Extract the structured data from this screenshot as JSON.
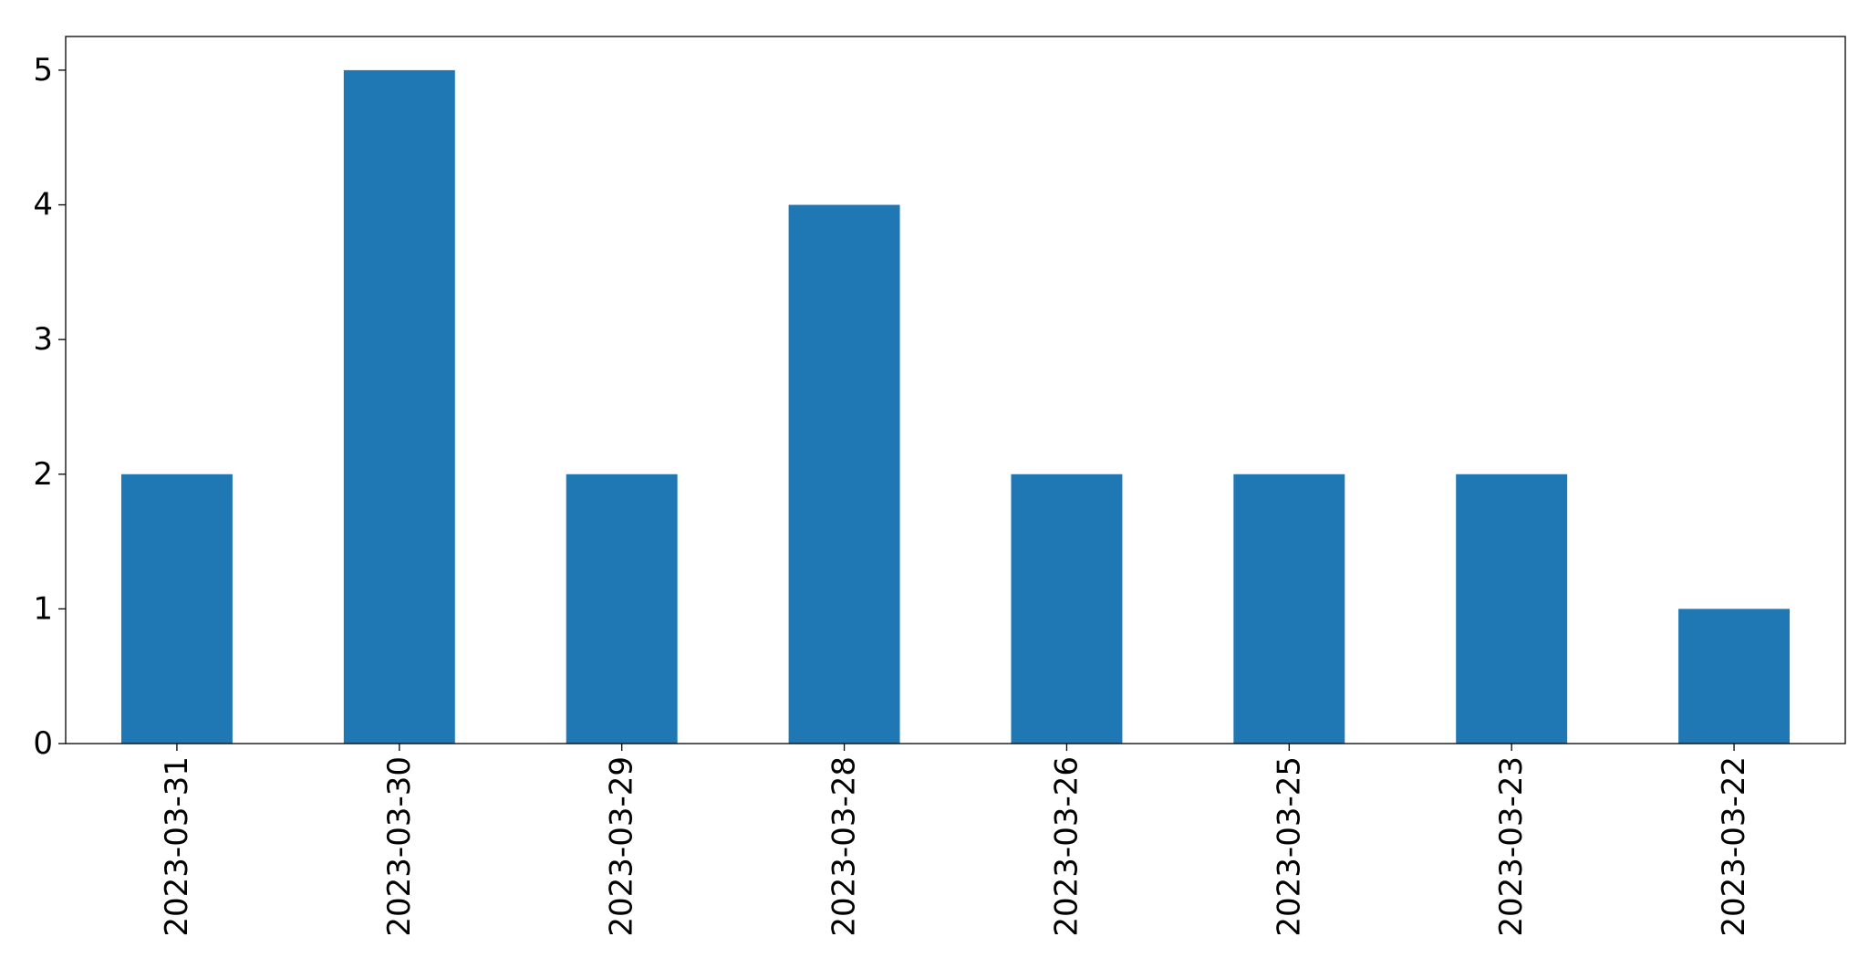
{
  "chart_data": {
    "type": "bar",
    "categories": [
      "2023-03-31",
      "2023-03-30",
      "2023-03-29",
      "2023-03-28",
      "2023-03-26",
      "2023-03-25",
      "2023-03-23",
      "2023-03-22"
    ],
    "values": [
      2,
      5,
      2,
      4,
      2,
      2,
      2,
      1
    ],
    "ylim": [
      0,
      5.25
    ],
    "yticks": [
      0,
      1,
      2,
      3,
      4,
      5
    ],
    "bar_color": "#1f77b4",
    "grid": false,
    "legend": "none",
    "x_tick_rotation": "vertical"
  }
}
